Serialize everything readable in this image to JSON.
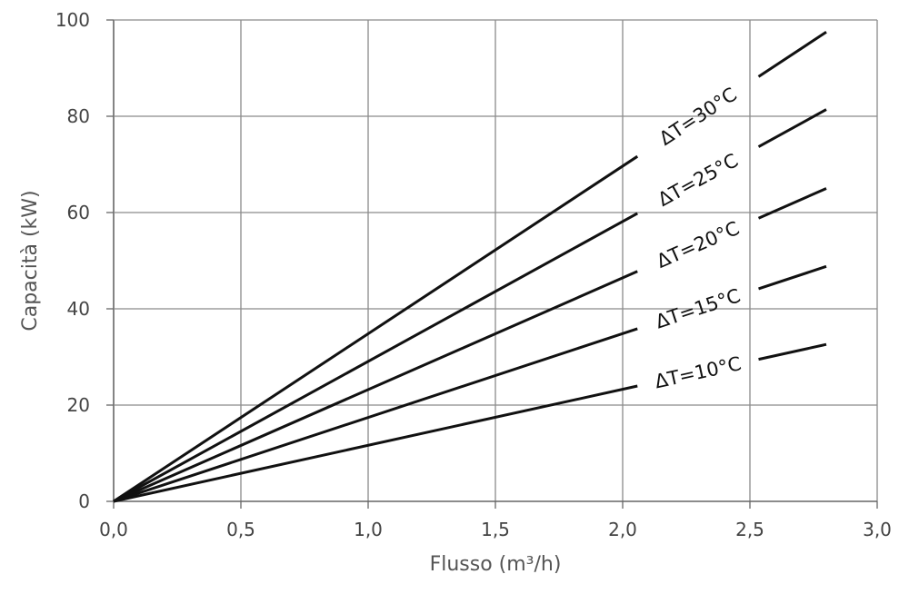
{
  "chart_data": {
    "type": "line",
    "title": "",
    "xlabel": "Flusso (m³/h)",
    "ylabel": "Capacità (kW)",
    "xlim": [
      0,
      3.0
    ],
    "ylim": [
      0,
      100
    ],
    "x_ticks": [
      "0,0",
      "0,5",
      "1,0",
      "1,5",
      "2,0",
      "2,5",
      "3,0"
    ],
    "y_ticks": [
      "0",
      "20",
      "40",
      "60",
      "80",
      "100"
    ],
    "grid": true,
    "series": [
      {
        "name": "ΔT=30°C",
        "x": [
          0,
          2.8
        ],
        "y": [
          0,
          97.5
        ]
      },
      {
        "name": "ΔT=25°C",
        "x": [
          0,
          2.8
        ],
        "y": [
          0,
          81.4
        ]
      },
      {
        "name": "ΔT=20°C",
        "x": [
          0,
          2.8
        ],
        "y": [
          0,
          65.0
        ]
      },
      {
        "name": "ΔT=15°C",
        "x": [
          0,
          2.8
        ],
        "y": [
          0,
          48.8
        ]
      },
      {
        "name": "ΔT=10°C",
        "x": [
          0,
          2.8
        ],
        "y": [
          0,
          32.6
        ]
      }
    ]
  }
}
